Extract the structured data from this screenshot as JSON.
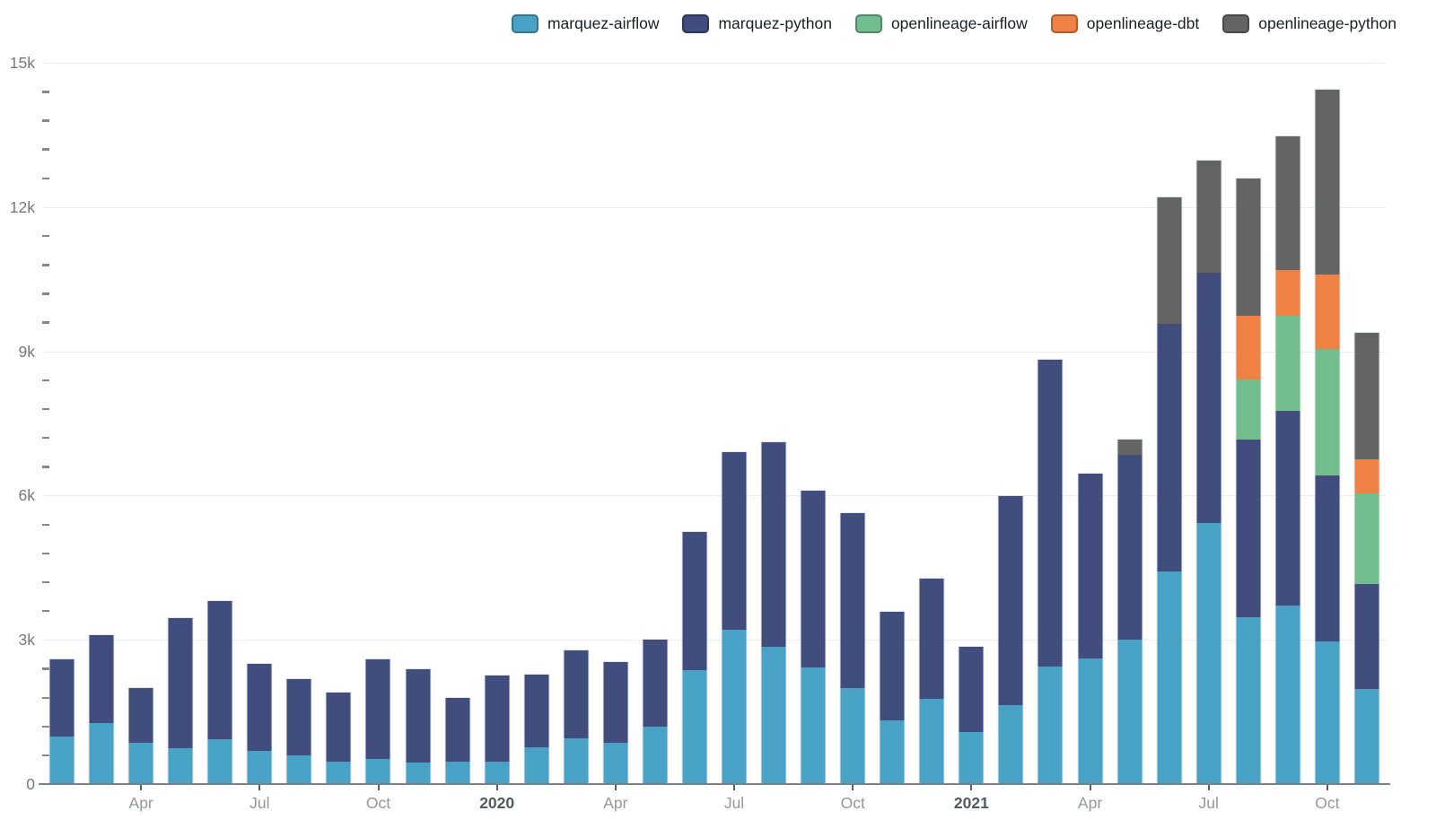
{
  "chart_data": {
    "type": "bar",
    "stacked": true,
    "title": "",
    "xlabel": "",
    "ylabel": "",
    "ylim": [
      0,
      15000
    ],
    "grid": "horizontal-major",
    "legend_position": "top-right",
    "yticks": [
      {
        "value": 0,
        "label": "0"
      },
      {
        "value": 3000,
        "label": "3k"
      },
      {
        "value": 6000,
        "label": "6k"
      },
      {
        "value": 9000,
        "label": "9k"
      },
      {
        "value": 12000,
        "label": "12k"
      },
      {
        "value": 15000,
        "label": "15k"
      }
    ],
    "y_minor_tick_step": 600,
    "x": [
      "Feb 2019",
      "Mar 2019",
      "Apr 2019",
      "May 2019",
      "Jun 2019",
      "Jul 2019",
      "Aug 2019",
      "Sep 2019",
      "Oct 2019",
      "Nov 2019",
      "Dec 2019",
      "Jan 2020",
      "Feb 2020",
      "Mar 2020",
      "Apr 2020",
      "May 2020",
      "Jun 2020",
      "Jul 2020",
      "Aug 2020",
      "Sep 2020",
      "Oct 2020",
      "Nov 2020",
      "Dec 2020",
      "Jan 2021",
      "Feb 2021",
      "Mar 2021",
      "Apr 2021",
      "May 2021",
      "Jun 2021",
      "Jul 2021",
      "Aug 2021",
      "Sep 2021",
      "Oct 2021",
      "Nov 2021"
    ],
    "xticks": [
      {
        "index": 2,
        "label": "Apr",
        "bold": false
      },
      {
        "index": 5,
        "label": "Jul",
        "bold": false
      },
      {
        "index": 8,
        "label": "Oct",
        "bold": false
      },
      {
        "index": 11,
        "label": "2020",
        "bold": true
      },
      {
        "index": 14,
        "label": "Apr",
        "bold": false
      },
      {
        "index": 17,
        "label": "Jul",
        "bold": false
      },
      {
        "index": 20,
        "label": "Oct",
        "bold": false
      },
      {
        "index": 23,
        "label": "2021",
        "bold": true
      },
      {
        "index": 26,
        "label": "Apr",
        "bold": false
      },
      {
        "index": 29,
        "label": "Jul",
        "bold": false
      },
      {
        "index": 32,
        "label": "Oct",
        "bold": false
      }
    ],
    "series": [
      {
        "name": "marquez-airflow",
        "color": "#48A2C5",
        "values": [
          990,
          1260,
          860,
          755,
          925,
          695,
          590,
          465,
          520,
          440,
          470,
          465,
          770,
          950,
          860,
          1190,
          2375,
          3210,
          2860,
          2420,
          2000,
          1330,
          1770,
          1090,
          1640,
          2440,
          2610,
          3000,
          4430,
          5425,
          3470,
          3710,
          2960,
          1970
        ]
      },
      {
        "name": "marquez-python",
        "color": "#414D7D",
        "values": [
          1600,
          1840,
          1130,
          2700,
          2875,
          1805,
          1590,
          1435,
          2080,
          1940,
          1330,
          1795,
          1510,
          1830,
          1680,
          1810,
          2875,
          3690,
          4240,
          3680,
          3640,
          2260,
          2500,
          1770,
          4350,
          6390,
          3850,
          3840,
          5145,
          5205,
          3690,
          4060,
          3460,
          2190
        ]
      },
      {
        "name": "openlineage-airflow",
        "color": "#71BD8D",
        "values": [
          0,
          0,
          0,
          0,
          0,
          0,
          0,
          0,
          0,
          0,
          0,
          0,
          0,
          0,
          0,
          0,
          0,
          0,
          0,
          0,
          0,
          0,
          0,
          0,
          0,
          0,
          0,
          0,
          0,
          0,
          1250,
          1970,
          2620,
          1880
        ]
      },
      {
        "name": "openlineage-dbt",
        "color": "#EF8144",
        "values": [
          0,
          0,
          0,
          0,
          0,
          0,
          0,
          0,
          0,
          0,
          0,
          0,
          0,
          0,
          0,
          0,
          0,
          0,
          0,
          0,
          0,
          0,
          0,
          0,
          0,
          0,
          0,
          0,
          0,
          0,
          1320,
          950,
          1560,
          710
        ]
      },
      {
        "name": "openlineage-python",
        "color": "#646464",
        "values": [
          0,
          0,
          0,
          0,
          0,
          0,
          0,
          0,
          0,
          0,
          0,
          0,
          0,
          0,
          0,
          0,
          0,
          0,
          0,
          0,
          0,
          0,
          0,
          0,
          0,
          0,
          0,
          330,
          2625,
          2340,
          2870,
          2780,
          3850,
          2630
        ]
      }
    ]
  }
}
